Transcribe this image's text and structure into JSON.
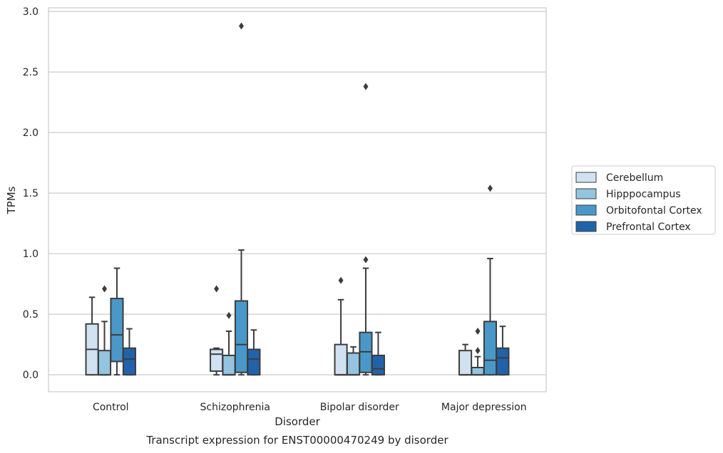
{
  "chart_data": {
    "type": "boxplot",
    "title": "",
    "xlabel": "Disorder",
    "ylabel": "TPMs",
    "caption": "Transcript expression for ENST00000470249 by disorder",
    "ylim": [
      -0.14,
      3.03
    ],
    "yticks": [
      0.0,
      0.5,
      1.0,
      1.5,
      2.0,
      2.5,
      3.0
    ],
    "ytick_labels": [
      "0.0",
      "0.5",
      "1.0",
      "1.5",
      "2.0",
      "2.5",
      "3.0"
    ],
    "grid": "horizontal",
    "legend_position": "right",
    "categories": [
      "Control",
      "Schizophrenia",
      "Bipolar disorder",
      "Major depression"
    ],
    "series": [
      {
        "name": "Cerebellum",
        "color": "#d0e1f2",
        "boxes": [
          {
            "whislo": 0.0,
            "q1": 0.0,
            "med": 0.21,
            "q3": 0.42,
            "whishi": 0.64,
            "fliers": []
          },
          {
            "whislo": 0.0,
            "q1": 0.03,
            "med": 0.17,
            "q3": 0.21,
            "whishi": 0.22,
            "fliers": [
              0.71
            ]
          },
          {
            "whislo": 0.0,
            "q1": 0.0,
            "med": 0.0,
            "q3": 0.25,
            "whishi": 0.62,
            "fliers": [
              0.78
            ]
          },
          {
            "whislo": 0.0,
            "q1": 0.0,
            "med": 0.0,
            "q3": 0.2,
            "whishi": 0.25,
            "fliers": []
          }
        ]
      },
      {
        "name": "Hipppocampus",
        "color": "#94c4df",
        "boxes": [
          {
            "whislo": 0.0,
            "q1": 0.0,
            "med": 0.0,
            "q3": 0.2,
            "whishi": 0.44,
            "fliers": [
              0.71
            ]
          },
          {
            "whislo": 0.0,
            "q1": 0.0,
            "med": 0.0,
            "q3": 0.16,
            "whishi": 0.36,
            "fliers": [
              0.49
            ]
          },
          {
            "whislo": 0.0,
            "q1": 0.0,
            "med": 0.0,
            "q3": 0.18,
            "whishi": 0.23,
            "fliers": []
          },
          {
            "whislo": 0.0,
            "q1": 0.0,
            "med": 0.0,
            "q3": 0.06,
            "whishi": 0.15,
            "fliers": [
              0.2,
              0.36
            ]
          }
        ]
      },
      {
        "name": "Orbitofontal Cortex",
        "color": "#4a98c9",
        "boxes": [
          {
            "whislo": 0.0,
            "q1": 0.11,
            "med": 0.33,
            "q3": 0.63,
            "whishi": 0.88,
            "fliers": []
          },
          {
            "whislo": 0.0,
            "q1": 0.02,
            "med": 0.25,
            "q3": 0.61,
            "whishi": 1.03,
            "fliers": [
              2.88
            ]
          },
          {
            "whislo": 0.0,
            "q1": 0.02,
            "med": 0.19,
            "q3": 0.35,
            "whishi": 0.88,
            "fliers": [
              0.95,
              2.38
            ]
          },
          {
            "whislo": 0.0,
            "q1": 0.0,
            "med": 0.12,
            "q3": 0.44,
            "whishi": 0.96,
            "fliers": [
              1.54
            ]
          }
        ]
      },
      {
        "name": "Prefrontal Cortex",
        "color": "#2163aa",
        "boxes": [
          {
            "whislo": 0.0,
            "q1": 0.0,
            "med": 0.13,
            "q3": 0.22,
            "whishi": 0.38,
            "fliers": []
          },
          {
            "whislo": 0.0,
            "q1": 0.0,
            "med": 0.13,
            "q3": 0.21,
            "whishi": 0.37,
            "fliers": []
          },
          {
            "whislo": 0.0,
            "q1": 0.0,
            "med": 0.05,
            "q3": 0.16,
            "whishi": 0.35,
            "fliers": []
          },
          {
            "whislo": 0.0,
            "q1": 0.0,
            "med": 0.14,
            "q3": 0.22,
            "whishi": 0.4,
            "fliers": []
          }
        ]
      }
    ]
  }
}
